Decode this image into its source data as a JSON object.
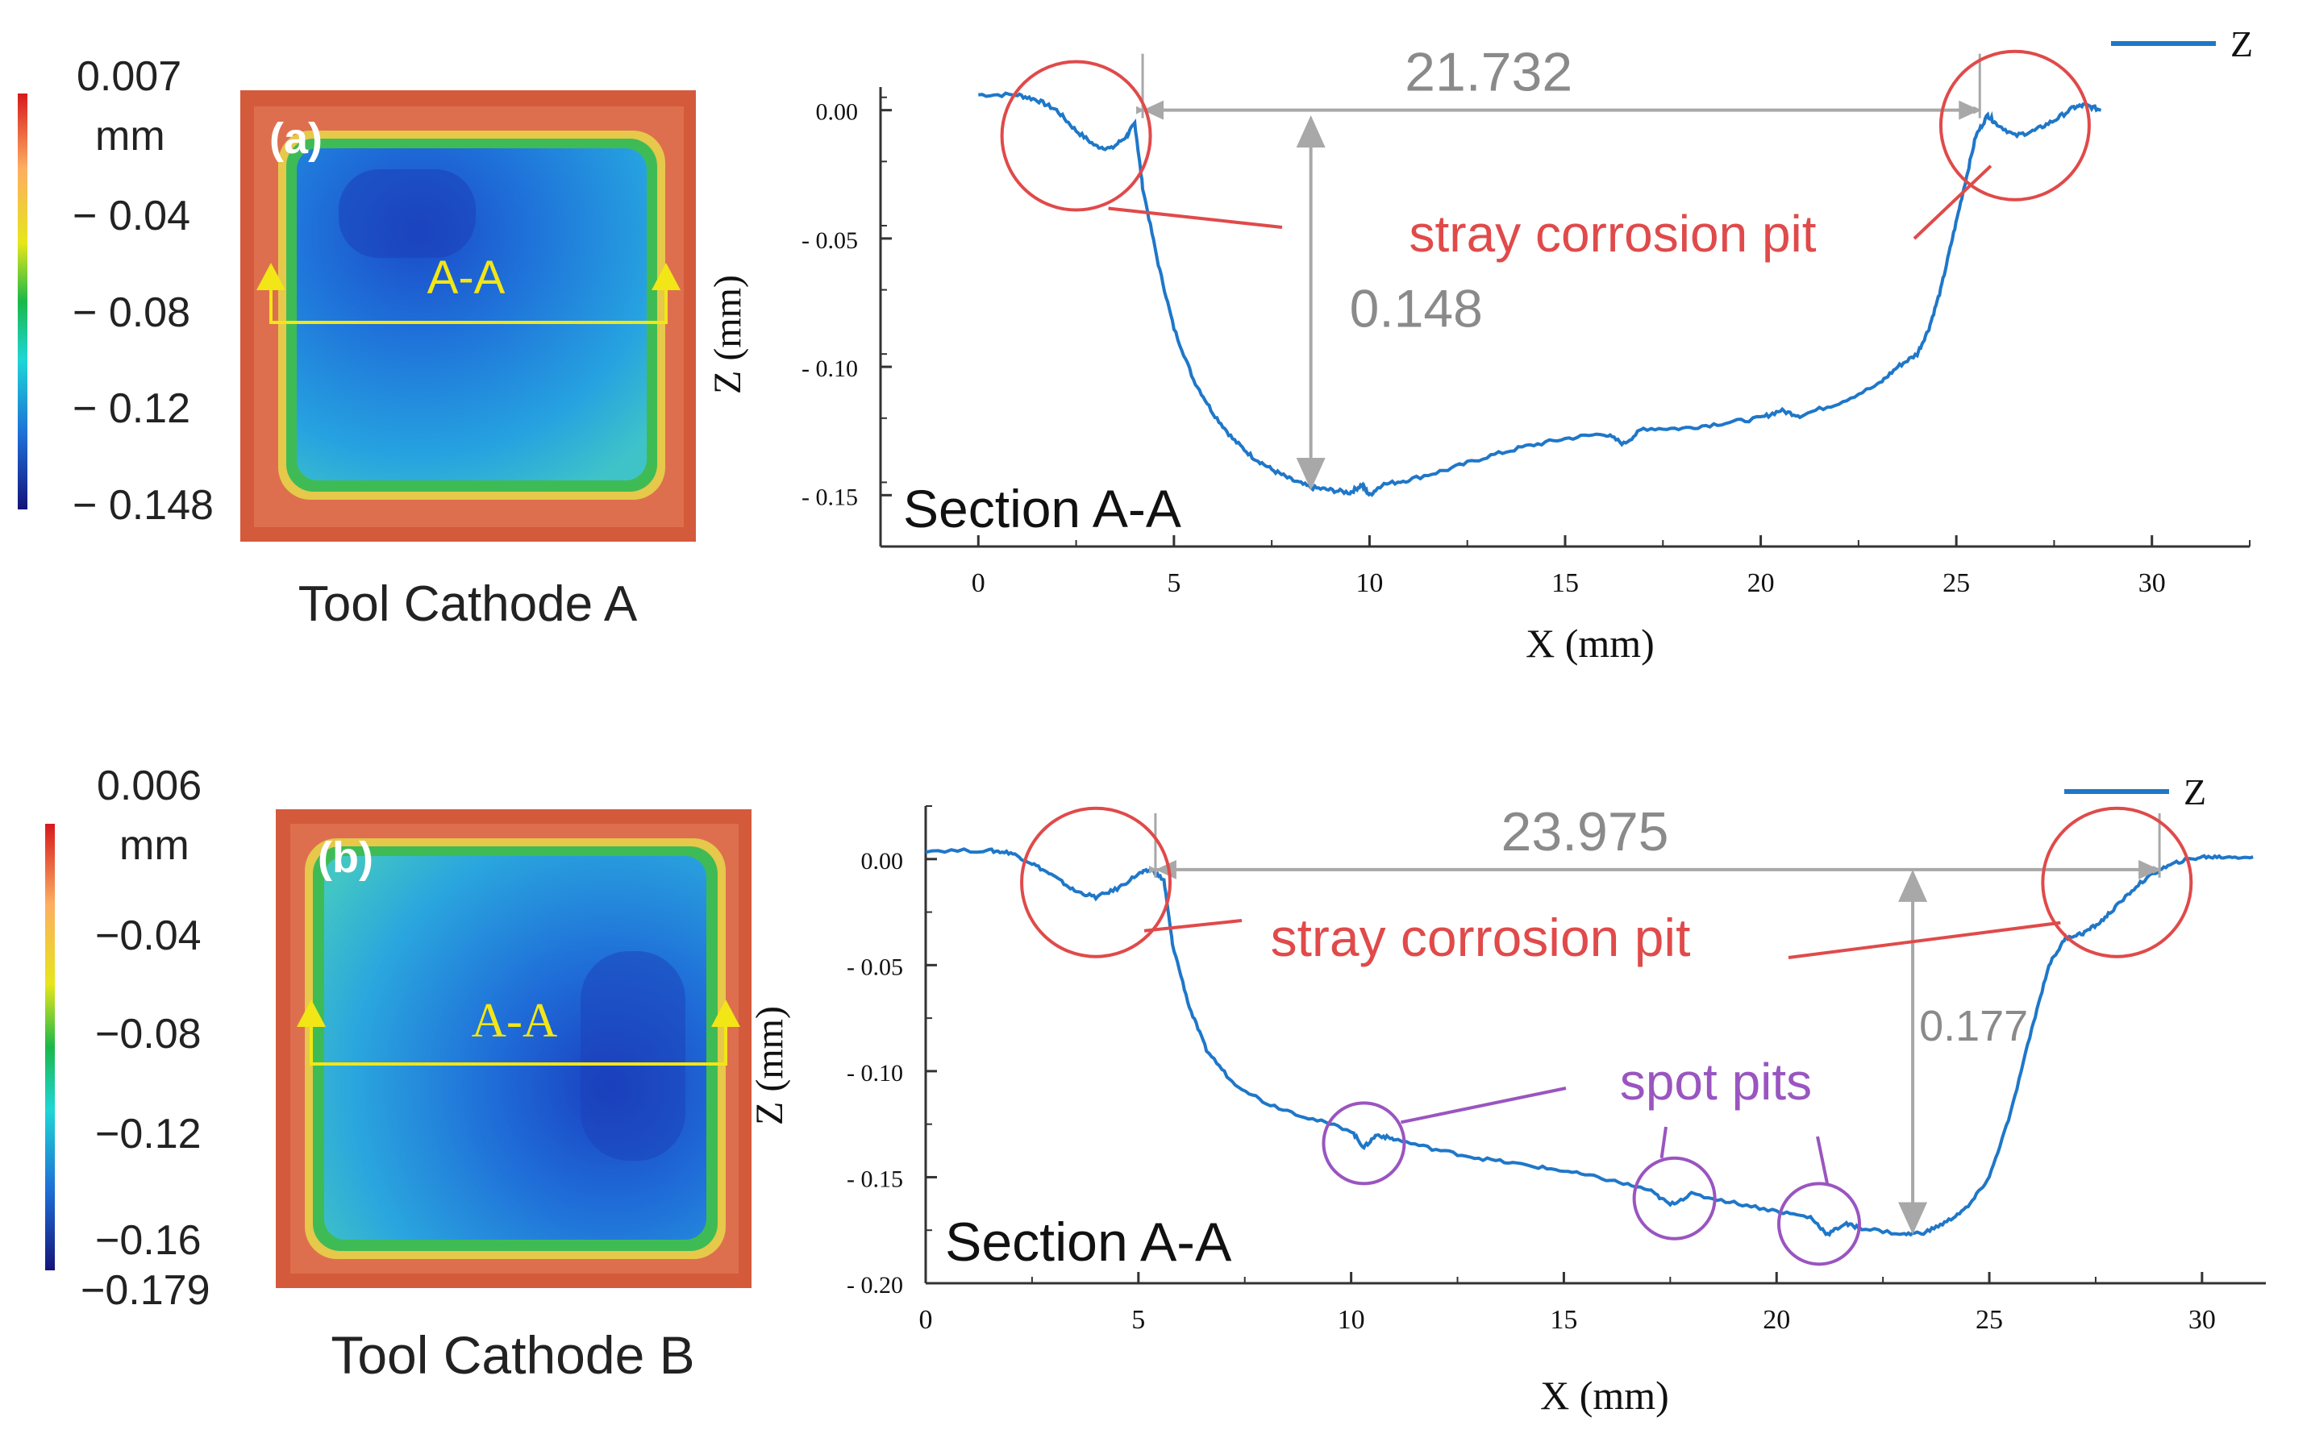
{
  "panels": [
    {
      "id": "a",
      "map": {
        "tag": "(a)",
        "section_label": "A-A",
        "caption": "Tool Cathode A",
        "colorbar": {
          "unit": "mm",
          "top_label": "0.007",
          "ticks": [
            "− 0.04",
            "− 0.08",
            "− 0.12",
            "− 0.148"
          ]
        }
      },
      "chart": {
        "title_inset": "Section A-A",
        "legend": "Z",
        "x_label": "X (mm)",
        "y_label": "Z (mm)",
        "x_ticks": [
          "0",
          "5",
          "10",
          "15",
          "20",
          "25",
          "30"
        ],
        "y_ticks": [
          "0.00",
          "- 0.05",
          "- 0.10",
          "- 0.15"
        ],
        "width_label": "21.732",
        "depth_label": "0.148",
        "pit_label": "stray corrosion pit"
      }
    },
    {
      "id": "b",
      "map": {
        "tag": "(b)",
        "section_label": "A-A",
        "caption": "Tool Cathode B",
        "colorbar": {
          "unit": "mm",
          "top_label": "0.006",
          "ticks": [
            "−0.04",
            "−0.08",
            "−0.12",
            "−0.16",
            "−0.179"
          ]
        }
      },
      "chart": {
        "title_inset": "Section A-A",
        "legend": "Z",
        "x_label": "X (mm)",
        "y_label": "Z (mm)",
        "x_ticks": [
          "0",
          "5",
          "10",
          "15",
          "20",
          "25",
          "30"
        ],
        "y_ticks": [
          "0.00",
          "- 0.05",
          "- 0.10",
          "- 0.15",
          "- 0.20"
        ],
        "width_label": "23.975",
        "depth_label": "0.177",
        "pit_label": "stray corrosion pit",
        "spot_label": "spot pits"
      }
    }
  ],
  "chart_data": [
    {
      "type": "line",
      "title": "Section A-A",
      "xlabel": "X (mm)",
      "ylabel": "Z (mm)",
      "xlim": [
        -2.5,
        32.5
      ],
      "ylim": [
        -0.17,
        0.009
      ],
      "series": [
        {
          "name": "Z",
          "color": "#1f77c8",
          "points": [
            [
              0,
              0.006
            ],
            [
              1,
              0.006
            ],
            [
              1.5,
              0.004
            ],
            [
              2,
              0.0
            ],
            [
              2.5,
              -0.008
            ],
            [
              3,
              -0.014
            ],
            [
              3.4,
              -0.015
            ],
            [
              3.8,
              -0.01
            ],
            [
              4,
              -0.005
            ],
            [
              4.2,
              -0.03
            ],
            [
              4.6,
              -0.06
            ],
            [
              5,
              -0.085
            ],
            [
              5.5,
              -0.105
            ],
            [
              6,
              -0.118
            ],
            [
              6.5,
              -0.128
            ],
            [
              7,
              -0.135
            ],
            [
              7.5,
              -0.14
            ],
            [
              8,
              -0.144
            ],
            [
              8.5,
              -0.147
            ],
            [
              9,
              -0.148
            ],
            [
              9.5,
              -0.149
            ],
            [
              9.8,
              -0.146
            ],
            [
              10,
              -0.15
            ],
            [
              10.3,
              -0.146
            ],
            [
              11,
              -0.144
            ],
            [
              12,
              -0.14
            ],
            [
              13,
              -0.135
            ],
            [
              14,
              -0.131
            ],
            [
              15,
              -0.128
            ],
            [
              16,
              -0.126
            ],
            [
              16.5,
              -0.13
            ],
            [
              17,
              -0.124
            ],
            [
              18,
              -0.124
            ],
            [
              19,
              -0.122
            ],
            [
              20,
              -0.12
            ],
            [
              20.5,
              -0.117
            ],
            [
              21,
              -0.119
            ],
            [
              22,
              -0.114
            ],
            [
              23,
              -0.107
            ],
            [
              23.5,
              -0.1
            ],
            [
              24,
              -0.095
            ],
            [
              24.3,
              -0.085
            ],
            [
              24.6,
              -0.07
            ],
            [
              24.9,
              -0.05
            ],
            [
              25.2,
              -0.03
            ],
            [
              25.5,
              -0.01
            ],
            [
              25.8,
              -0.002
            ],
            [
              26,
              -0.005
            ],
            [
              26.5,
              -0.01
            ],
            [
              27,
              -0.008
            ],
            [
              27.5,
              -0.004
            ],
            [
              28,
              0.001
            ],
            [
              28.3,
              0.002
            ],
            [
              28.7,
              0.0
            ]
          ]
        }
      ],
      "annotations": [
        {
          "type": "width",
          "x1": 4.2,
          "x2": 25.6,
          "y": 0.0,
          "label": "21.732"
        },
        {
          "type": "depth",
          "x": 8.5,
          "y_top": -0.002,
          "y_bottom": -0.148,
          "label": "0.148"
        },
        {
          "type": "circle",
          "x": 2.5,
          "y": -0.01,
          "label": "stray corrosion pit"
        },
        {
          "type": "circle",
          "x": 26.5,
          "y": -0.006,
          "label": "stray corrosion pit"
        }
      ]
    },
    {
      "type": "line",
      "title": "Section A-A",
      "xlabel": "X (mm)",
      "ylabel": "Z (mm)",
      "xlim": [
        0,
        31.5
      ],
      "ylim": [
        -0.2,
        0.025
      ],
      "series": [
        {
          "name": "Z",
          "color": "#1f77c8",
          "points": [
            [
              0,
              0.004
            ],
            [
              1.5,
              0.004
            ],
            [
              2,
              0.003
            ],
            [
              2.5,
              -0.002
            ],
            [
              3,
              -0.008
            ],
            [
              3.5,
              -0.015
            ],
            [
              4,
              -0.018
            ],
            [
              4.5,
              -0.014
            ],
            [
              5,
              -0.007
            ],
            [
              5.3,
              -0.005
            ],
            [
              5.6,
              -0.01
            ],
            [
              5.8,
              -0.04
            ],
            [
              6.2,
              -0.07
            ],
            [
              6.6,
              -0.09
            ],
            [
              7.2,
              -0.105
            ],
            [
              8,
              -0.115
            ],
            [
              9,
              -0.122
            ],
            [
              10,
              -0.128
            ],
            [
              10.3,
              -0.136
            ],
            [
              10.6,
              -0.13
            ],
            [
              11,
              -0.132
            ],
            [
              12,
              -0.137
            ],
            [
              13,
              -0.141
            ],
            [
              14,
              -0.144
            ],
            [
              15,
              -0.147
            ],
            [
              16,
              -0.151
            ],
            [
              17,
              -0.156
            ],
            [
              17.5,
              -0.163
            ],
            [
              18,
              -0.158
            ],
            [
              19,
              -0.162
            ],
            [
              20,
              -0.166
            ],
            [
              20.8,
              -0.169
            ],
            [
              21.2,
              -0.177
            ],
            [
              21.6,
              -0.172
            ],
            [
              22,
              -0.174
            ],
            [
              23,
              -0.177
            ],
            [
              23.5,
              -0.176
            ],
            [
              24,
              -0.171
            ],
            [
              24.5,
              -0.164
            ],
            [
              25,
              -0.15
            ],
            [
              25.5,
              -0.12
            ],
            [
              26,
              -0.08
            ],
            [
              26.4,
              -0.05
            ],
            [
              26.8,
              -0.037
            ],
            [
              27.2,
              -0.035
            ],
            [
              27.6,
              -0.03
            ],
            [
              28,
              -0.022
            ],
            [
              28.5,
              -0.012
            ],
            [
              29,
              -0.005
            ],
            [
              29.5,
              -0.001
            ],
            [
              30,
              0.001
            ],
            [
              30.5,
              0.001
            ],
            [
              31.2,
              0.001
            ]
          ]
        }
      ],
      "annotations": [
        {
          "type": "width",
          "x1": 5.4,
          "x2": 29.0,
          "y": -0.005,
          "label": "23.975"
        },
        {
          "type": "depth",
          "x": 23.2,
          "y_top": -0.005,
          "y_bottom": -0.177,
          "label": "0.177"
        },
        {
          "type": "circle",
          "x": 4.0,
          "y": -0.011,
          "label": "stray corrosion pit"
        },
        {
          "type": "circle",
          "x": 28.0,
          "y": -0.011,
          "label": "stray corrosion pit"
        },
        {
          "type": "circle",
          "x": 10.3,
          "y": -0.134,
          "label": "spot pits"
        },
        {
          "type": "circle",
          "x": 17.6,
          "y": -0.16,
          "label": "spot pits"
        },
        {
          "type": "circle",
          "x": 21.0,
          "y": -0.172,
          "label": "spot pits"
        }
      ]
    }
  ],
  "colors": {
    "curve": "#1f77c8",
    "annotation_red": "#e04a4a",
    "annotation_gray": "#a8a8a8",
    "annotation_purple": "#9a55c0",
    "section_yellow": "#f2e617",
    "map_edge": "#d45a3c"
  }
}
